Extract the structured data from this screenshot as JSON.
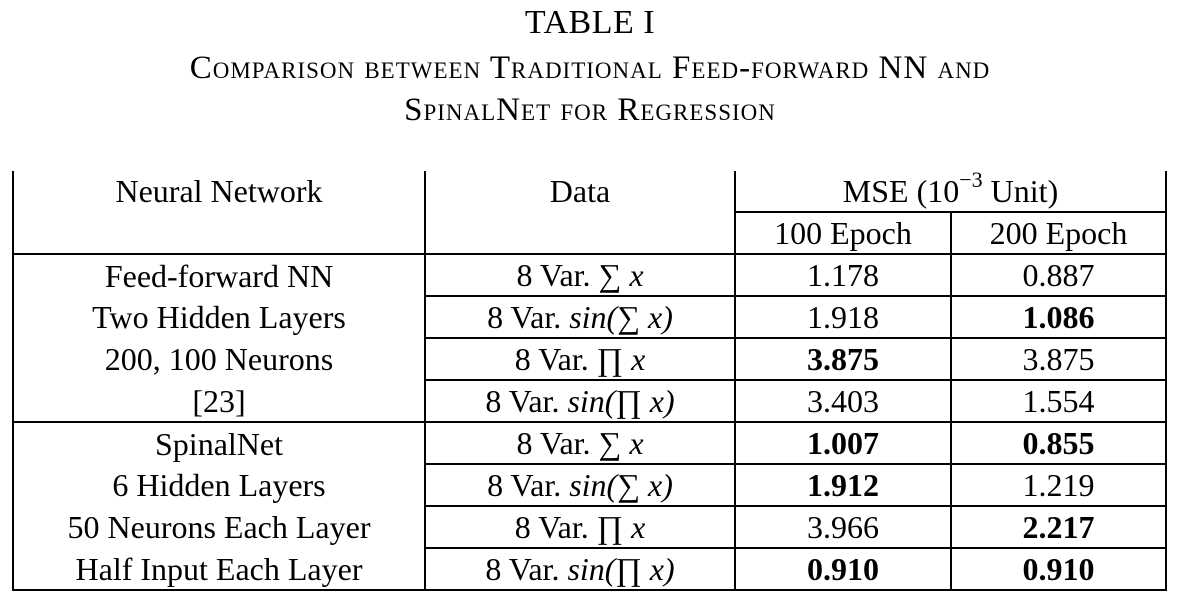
{
  "caption": {
    "label": "TABLE I",
    "line1": "Comparison between Traditional Feed-forward NN and",
    "line2": "SpinalNet for Regression"
  },
  "header": {
    "neural_network": "Neural Network",
    "data": "Data",
    "mse_prefix": "MSE (10",
    "mse_exp": "−3",
    "mse_suffix": " Unit)",
    "epoch100": "100 Epoch",
    "epoch200": "200 Epoch"
  },
  "groups": [
    {
      "net_lines": [
        "Feed-forward NN",
        "Two Hidden Layers",
        "200, 100 Neurons",
        "[23]"
      ],
      "rows": [
        {
          "data_prefix": "8 Var. ",
          "data_math": "∑ x",
          "e100": "1.178",
          "e200": "0.887",
          "bold100": false,
          "bold200": false
        },
        {
          "data_prefix": "8 Var. ",
          "data_math": "sin(∑ x)",
          "e100": "1.918",
          "e200": "1.086",
          "bold100": false,
          "bold200": true
        },
        {
          "data_prefix": "8 Var. ",
          "data_math": "∏ x",
          "e100": "3.875",
          "e200": "3.875",
          "bold100": true,
          "bold200": false
        },
        {
          "data_prefix": "8 Var. ",
          "data_math": "sin(∏ x)",
          "e100": "3.403",
          "e200": "1.554",
          "bold100": false,
          "bold200": false
        }
      ]
    },
    {
      "net_lines": [
        "SpinalNet",
        "6 Hidden Layers",
        "50 Neurons Each Layer",
        "Half Input Each Layer"
      ],
      "rows": [
        {
          "data_prefix": "8 Var. ",
          "data_math": "∑ x",
          "e100": "1.007",
          "e200": "0.855",
          "bold100": true,
          "bold200": true
        },
        {
          "data_prefix": "8 Var. ",
          "data_math": "sin(∑ x)",
          "e100": "1.912",
          "e200": "1.219",
          "bold100": true,
          "bold200": false
        },
        {
          "data_prefix": "8 Var. ",
          "data_math": "∏ x",
          "e100": "3.966",
          "e200": "2.217",
          "bold100": false,
          "bold200": true
        },
        {
          "data_prefix": "8 Var. ",
          "data_math": "sin(∏ x)",
          "e100": "0.910",
          "e200": "0.910",
          "bold100": true,
          "bold200": true
        }
      ]
    }
  ]
}
